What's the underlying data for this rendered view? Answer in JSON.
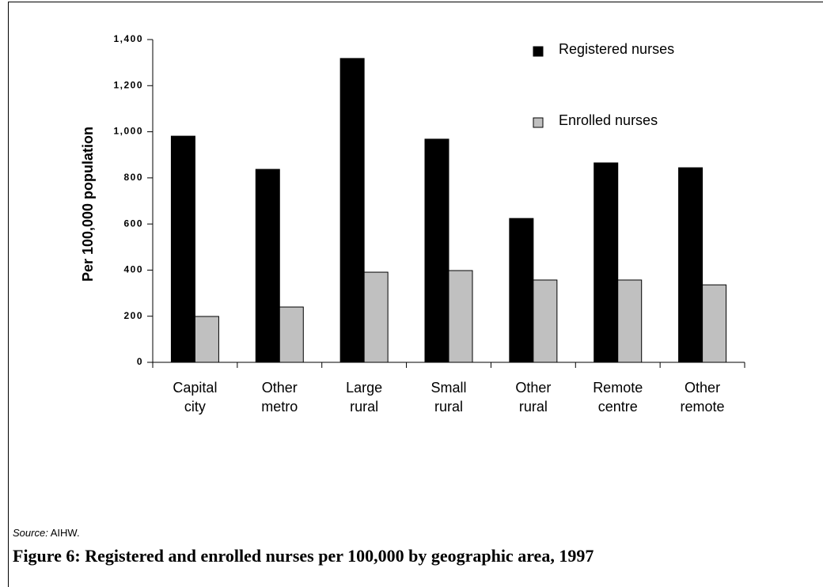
{
  "chart_data": {
    "type": "bar",
    "caption": "Figure 6: Registered and enrolled nurses per 100,000 by geographic area, 1997",
    "source_label": "Source:",
    "source": "AIHW.",
    "ylabel": "Per 100,000 population",
    "categories": [
      "Capital city",
      "Other metro",
      "Large rural",
      "Small rural",
      "Other rural",
      "Remote centre",
      "Other remote"
    ],
    "series": [
      {
        "name": "Registered nurses",
        "color": "#000000",
        "values": [
          981,
          837,
          1318,
          968,
          624,
          865,
          844
        ]
      },
      {
        "name": "Enrolled nurses",
        "color": "#c0c0c0",
        "values": [
          199,
          240,
          391,
          398,
          357,
          357,
          336
        ]
      }
    ],
    "ylim": [
      0,
      1400
    ],
    "yticks": [
      0,
      200,
      400,
      600,
      800,
      {
        "value": 1000,
        "label": "1,000"
      },
      {
        "value": 1200,
        "label": "1,200"
      },
      {
        "value": 1400,
        "label": "1,400"
      }
    ],
    "legend": "top-right"
  }
}
